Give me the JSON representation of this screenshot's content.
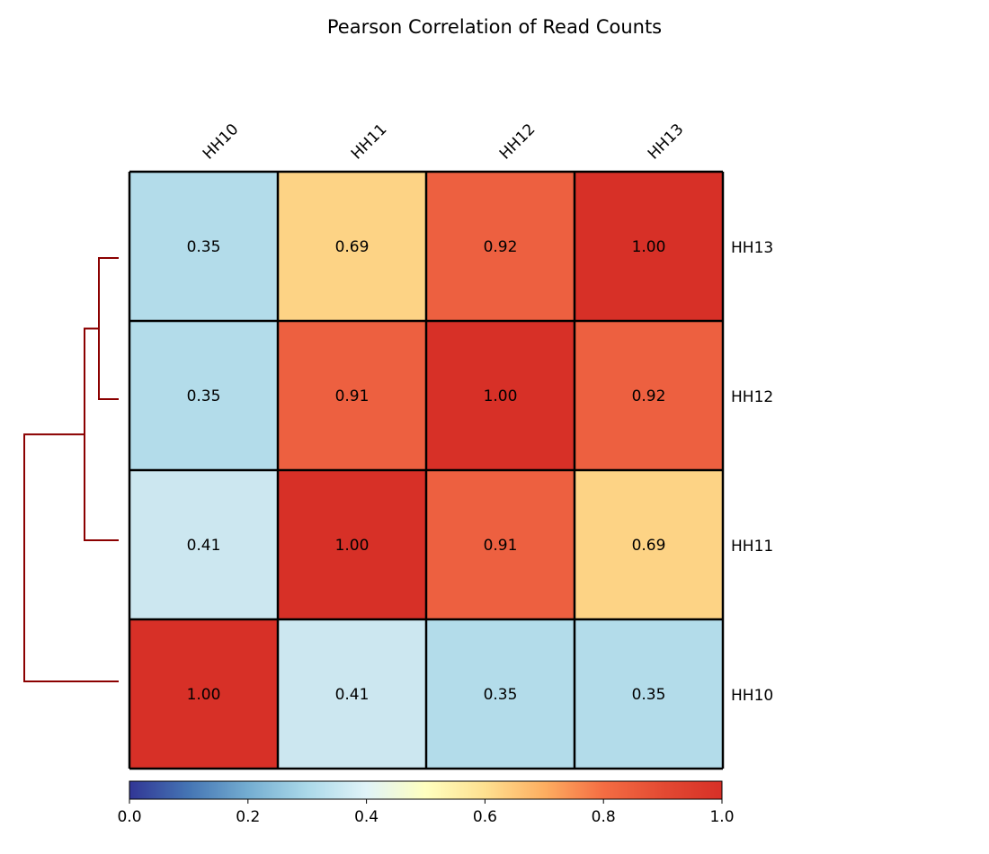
{
  "chart_data": {
    "type": "heatmap",
    "title": "Pearson Correlation of Read Counts",
    "columns": [
      "HH10",
      "HH11",
      "HH12",
      "HH13"
    ],
    "rows": [
      "HH13",
      "HH12",
      "HH11",
      "HH10"
    ],
    "values": [
      [
        0.35,
        0.69,
        0.92,
        1.0
      ],
      [
        0.35,
        0.91,
        1.0,
        0.92
      ],
      [
        0.41,
        1.0,
        0.91,
        0.69
      ],
      [
        1.0,
        0.41,
        0.35,
        0.35
      ]
    ],
    "value_labels": [
      [
        "0.35",
        "0.69",
        "0.92",
        "1.00"
      ],
      [
        "0.35",
        "0.91",
        "1.00",
        "0.92"
      ],
      [
        "0.41",
        "1.00",
        "0.91",
        "0.69"
      ],
      [
        "1.00",
        "0.41",
        "0.35",
        "0.35"
      ]
    ],
    "colormap": "RdYlBu_r",
    "colorbar": {
      "range": [
        0.0,
        1.0
      ],
      "ticks": [
        "0.0",
        "0.2",
        "0.4",
        "0.6",
        "0.8",
        "1.0"
      ],
      "placement": "bottom"
    },
    "dendrogram": {
      "side": "left",
      "color": "#8b0000",
      "merges": [
        {
          "left": "HH13",
          "right": "HH12",
          "order": 1
        },
        {
          "left": "HH13+HH12",
          "right": "HH11",
          "order": 2
        },
        {
          "left": "HH13+HH12+HH11",
          "right": "HH10",
          "order": 3
        }
      ]
    },
    "colors": {
      "0.35": "#b3dcea",
      "0.41": "#cce7f0",
      "0.69": "#fdd385",
      "0.91": "#ed6040",
      "0.92": "#ed6040",
      "1.00": "#d73027"
    }
  }
}
